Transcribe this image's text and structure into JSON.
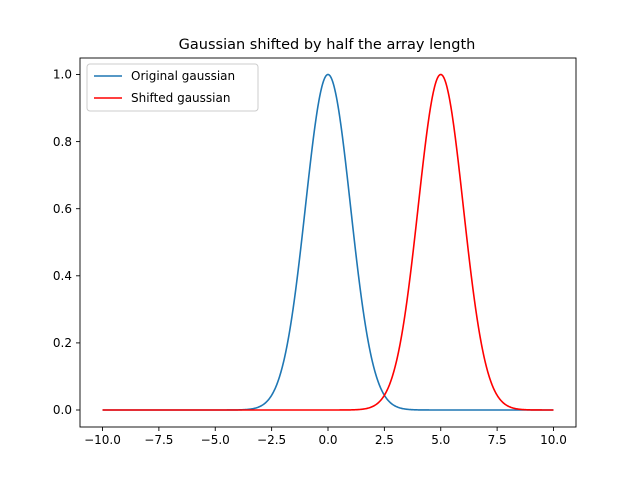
{
  "chart_data": {
    "type": "line",
    "title": "Gaussian shifted by half the array length",
    "xlabel": "",
    "ylabel": "",
    "xlim": [
      -10.0,
      10.0
    ],
    "ylim": [
      0.0,
      1.0
    ],
    "x_ticks": [
      -10.0,
      -7.5,
      -5.0,
      -2.5,
      0.0,
      2.5,
      5.0,
      7.5,
      10.0
    ],
    "x_tick_labels": [
      "−10.0",
      "−7.5",
      "−5.0",
      "−2.5",
      "0.0",
      "2.5",
      "5.0",
      "7.5",
      "10.0"
    ],
    "y_ticks": [
      0.0,
      0.2,
      0.4,
      0.6,
      0.8,
      1.0
    ],
    "y_tick_labels": [
      "0.0",
      "0.2",
      "0.4",
      "0.6",
      "0.8",
      "1.0"
    ],
    "grid": false,
    "legend": {
      "position": "top-left"
    },
    "series": [
      {
        "name": "Original gaussian",
        "color": "#1f77b4",
        "x": [
          -10,
          -4,
          -3.5,
          -3,
          -2.75,
          -2.5,
          -2.25,
          -2,
          -1.75,
          -1.5,
          -1.25,
          -1,
          -0.75,
          -0.5,
          -0.25,
          0,
          0.25,
          0.5,
          0.75,
          1,
          1.25,
          1.5,
          1.75,
          2,
          2.25,
          2.5,
          2.75,
          3,
          3.5,
          4,
          10
        ],
        "y": [
          0,
          0.0003,
          0.0022,
          0.0111,
          0.0228,
          0.0439,
          0.0796,
          0.1353,
          0.2163,
          0.3247,
          0.4578,
          0.6065,
          0.7548,
          0.8825,
          0.9692,
          1.0,
          0.9692,
          0.8825,
          0.7548,
          0.6065,
          0.4578,
          0.3247,
          0.2163,
          0.1353,
          0.0796,
          0.0439,
          0.0228,
          0.0111,
          0.0022,
          0.0003,
          0
        ]
      },
      {
        "name": "Shifted gaussian",
        "color": "#ff0000",
        "x": [
          -10,
          1,
          1.5,
          2,
          2.25,
          2.5,
          2.75,
          3,
          3.25,
          3.5,
          3.75,
          4,
          4.25,
          4.5,
          4.75,
          5,
          5.25,
          5.5,
          5.75,
          6,
          6.25,
          6.5,
          6.75,
          7,
          7.25,
          7.5,
          7.75,
          8,
          8.5,
          9,
          10
        ],
        "y": [
          0,
          0.0003,
          0.0022,
          0.0111,
          0.0228,
          0.0439,
          0.0796,
          0.1353,
          0.2163,
          0.3247,
          0.4578,
          0.6065,
          0.7548,
          0.8825,
          0.9692,
          1.0,
          0.9692,
          0.8825,
          0.7548,
          0.6065,
          0.4578,
          0.3247,
          0.2163,
          0.1353,
          0.0796,
          0.0439,
          0.0228,
          0.0111,
          0.0022,
          0.0003,
          0
        ]
      }
    ]
  }
}
